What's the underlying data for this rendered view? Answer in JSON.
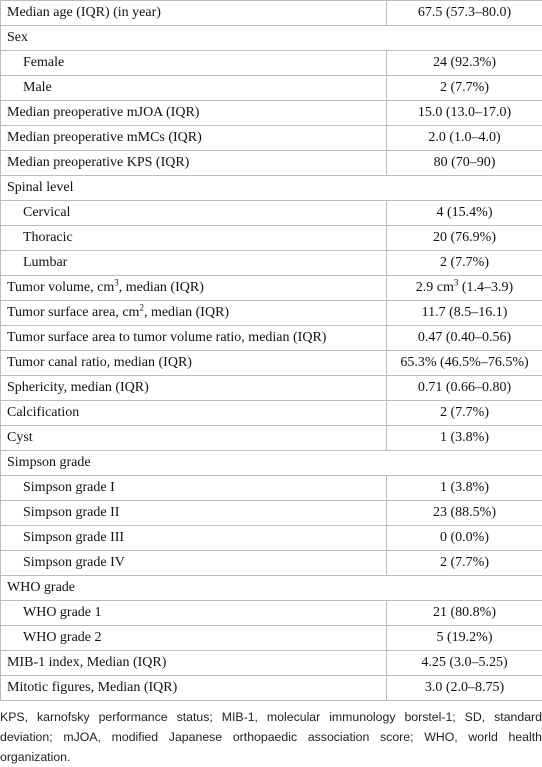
{
  "table": {
    "rows": [
      {
        "label": "Median age (IQR) (in year)",
        "value": "67.5 (57.3–80.0)"
      },
      {
        "label": "Sex",
        "items": [
          {
            "label": "Female",
            "value": "24 (92.3%)"
          },
          {
            "label": "Male",
            "value": "2 (7.7%)"
          }
        ]
      },
      {
        "label": "Median preoperative mJOA (IQR)",
        "value": "15.0 (13.0–17.0)"
      },
      {
        "label": "Median preoperative mMCs (IQR)",
        "value": "2.0 (1.0–4.0)"
      },
      {
        "label": "Median preoperative KPS (IQR)",
        "value": "80 (70–90)"
      },
      {
        "label": "Spinal level",
        "items": [
          {
            "label": "Cervical",
            "value": "4 (15.4%)"
          },
          {
            "label": "Thoracic",
            "value": "20 (76.9%)"
          },
          {
            "label": "Lumbar",
            "value": "2 (7.7%)"
          }
        ]
      },
      {
        "label": [
          "Tumor volume, cm",
          {
            "sup": "3"
          },
          ", median (IQR)"
        ],
        "value": [
          "2.9 cm",
          {
            "sup": "3"
          },
          " (1.4–3.9)"
        ]
      },
      {
        "label": [
          "Tumor surface area, cm",
          {
            "sup": "2"
          },
          ", median (IQR)"
        ],
        "value": "11.7 (8.5–16.1)"
      },
      {
        "label": "Tumor surface area to tumor volume ratio, median (IQR)",
        "value": "0.47 (0.40–0.56)"
      },
      {
        "label": "Tumor canal ratio, median (IQR)",
        "value": "65.3% (46.5%–76.5%)"
      },
      {
        "label": "Sphericity, median (IQR)",
        "value": "0.71 (0.66–0.80)"
      },
      {
        "label": "Calcification",
        "value": "2 (7.7%)"
      },
      {
        "label": "Cyst",
        "value": "1 (3.8%)"
      },
      {
        "label": "Simpson grade",
        "items": [
          {
            "label": "Simpson grade I",
            "value": "1 (3.8%)"
          },
          {
            "label": "Simpson grade II",
            "value": "23 (88.5%)"
          },
          {
            "label": "Simpson grade III",
            "value": "0 (0.0%)"
          },
          {
            "label": "Simpson grade IV",
            "value": "2 (7.7%)"
          }
        ]
      },
      {
        "label": "WHO grade",
        "items": [
          {
            "label": "WHO grade 1",
            "value": "21 (80.8%)"
          },
          {
            "label": "WHO grade 2",
            "value": "5 (19.2%)"
          }
        ]
      },
      {
        "label": "MIB-1 index, Median (IQR)",
        "value": "4.25 (3.0–5.25)"
      },
      {
        "label": "Mitotic figures, Median (IQR)",
        "value": "3.0 (2.0–8.75)"
      }
    ]
  },
  "footnote": "KPS, karnofsky performance status; MIB-1, molecular immunology borstel-1; SD, standard deviation; mJOA, modified Japanese orthopaedic association score; WHO, world health organization."
}
